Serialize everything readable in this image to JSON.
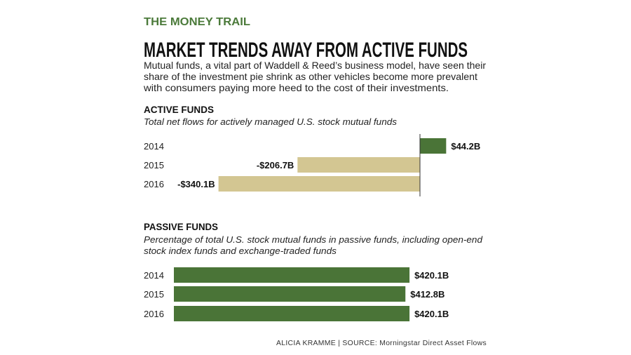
{
  "kicker": "THE MONEY TRAIL",
  "headline": "MARKET TRENDS AWAY FROM ACTIVE FUNDS",
  "intro_lines": [
    "Mutual funds, a vital part of Waddell & Reed’s business model, have seen their",
    "share of the investment pie shrink as other vehicles become more prevalent",
    "with consumers paying more heed to the cost of their investments."
  ],
  "colors": {
    "positive": "#4a7437",
    "negative": "#d3c692",
    "kicker": "#4b7a3a"
  },
  "chart_data": [
    {
      "type": "bar",
      "orientation": "horizontal",
      "title": "ACTIVE FUNDS",
      "subtitle_lines": [
        "Total net flows for actively managed U.S. stock mutual funds"
      ],
      "categories": [
        "2014",
        "2015",
        "2016"
      ],
      "values": [
        44.2,
        -206.7,
        -340.1
      ],
      "labels": [
        "$44.2B",
        "-$206.7B",
        "-$340.1B"
      ],
      "unit": "billion USD",
      "zero_line": true
    },
    {
      "type": "bar",
      "orientation": "horizontal",
      "title": "PASSIVE FUNDS",
      "subtitle_lines": [
        "Percentage of total U.S. stock mutual funds in passive funds, including open-end",
        "stock index funds and exchange-traded funds"
      ],
      "categories": [
        "2014",
        "2015",
        "2016"
      ],
      "values": [
        420.1,
        412.8,
        420.1
      ],
      "labels": [
        "$420.1B",
        "$412.8B",
        "$420.1B"
      ],
      "unit": "billion USD"
    }
  ],
  "source": "ALICIA KRAMME | SOURCE: Morningstar Direct Asset Flows"
}
